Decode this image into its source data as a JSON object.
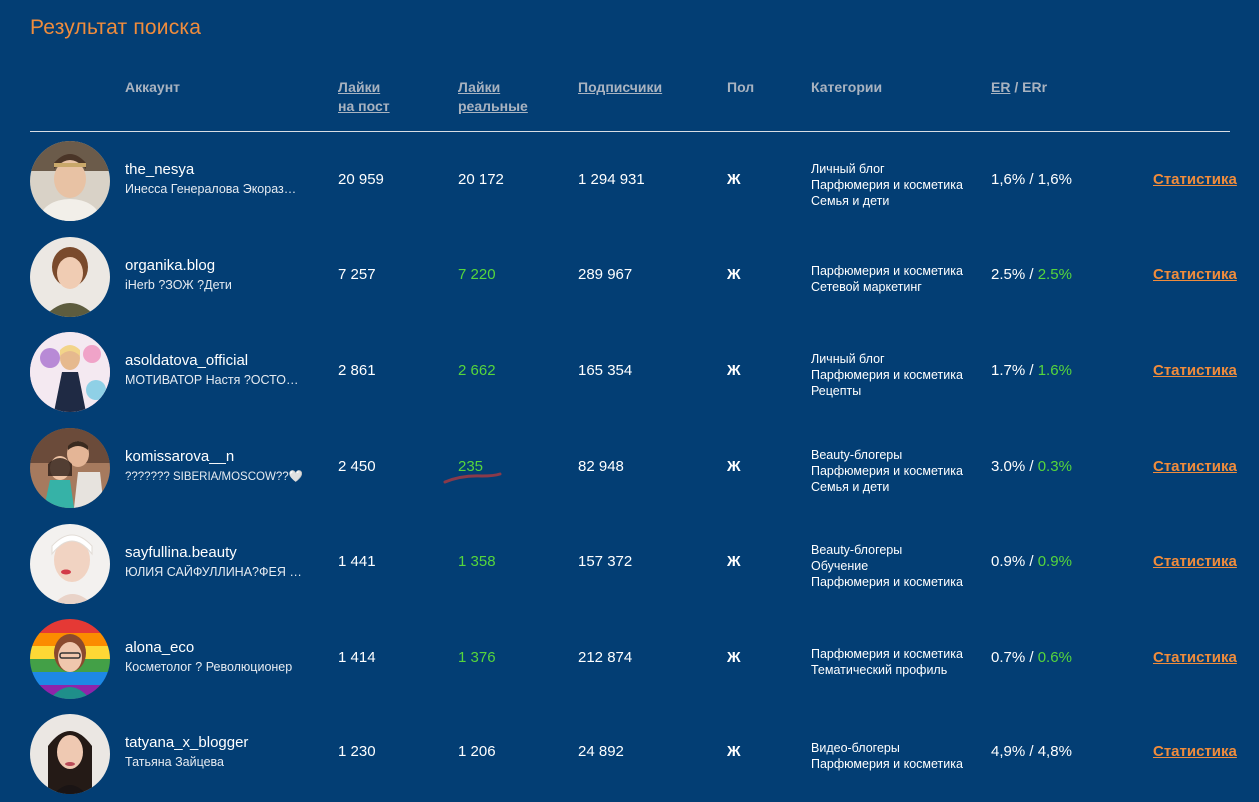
{
  "page": {
    "title": "Результат поиска"
  },
  "columns": {
    "account": "Аккаунт",
    "likes_per_post_1": "Лайки",
    "likes_per_post_2": "на пост",
    "likes_real_1": "Лайки",
    "likes_real_2": "реальные",
    "subscribers": "Подписчики",
    "gender": "Пол",
    "categories": "Категории",
    "er": "ER",
    "er_sep": " / ",
    "err": "ERr"
  },
  "colors": {
    "background": "#033e74",
    "accent": "#f08c3c",
    "green": "#56d63c"
  },
  "rows": [
    {
      "username": "the_nesya",
      "description": "Инесса Генералова Экоразно…",
      "likes_per_post": "20 959",
      "likes_real": "20 172",
      "likes_real_green": false,
      "subscribers": "1 294 931",
      "gender": "Ж",
      "categories": [
        "Личный блог",
        "Парфюмерия и косметика",
        "Семья и дети"
      ],
      "er": "1,6%",
      "err": "1,6%",
      "err_green": false,
      "stat_label": "Статистика"
    },
    {
      "username": "organika.blog",
      "description": "iHerb ?ЗОЖ ?Дети",
      "likes_per_post": "7 257",
      "likes_real": "7 220",
      "likes_real_green": true,
      "subscribers": "289 967",
      "gender": "Ж",
      "categories": [
        "Парфюмерия и косметика",
        "Сетевой маркетинг"
      ],
      "er": "2.5%",
      "err": "2.5%",
      "err_green": true,
      "stat_label": "Статистика"
    },
    {
      "username": "asoldatova_official",
      "description": "МОТИВАТОР Настя ?ОСТОРО…",
      "likes_per_post": "2 861",
      "likes_real": "2 662",
      "likes_real_green": true,
      "subscribers": "165 354",
      "gender": "Ж",
      "categories": [
        "Личный блог",
        "Парфюмерия и косметика",
        "Рецепты"
      ],
      "er": "1.7%",
      "err": "1.6%",
      "err_green": true,
      "stat_label": "Статистика"
    },
    {
      "username": "komissarova__n",
      "description": "??????? SIBERIA/MOSCOW??🤍",
      "likes_per_post": "2 450",
      "likes_real": "235",
      "likes_real_green": true,
      "subscribers": "82 948",
      "gender": "Ж",
      "categories": [
        "Beauty-блогеры",
        "Парфюмерия и косметика",
        "Семья и дети"
      ],
      "er": "3.0%",
      "err": "0.3%",
      "err_green": true,
      "stat_label": "Статистика"
    },
    {
      "username": "sayfullina.beauty",
      "description": "ЮЛИЯ САЙФУЛЛИНА?ФЕЯ КР…",
      "likes_per_post": "1 441",
      "likes_real": "1 358",
      "likes_real_green": true,
      "subscribers": "157 372",
      "gender": "Ж",
      "categories": [
        "Beauty-блогеры",
        "Обучение",
        "Парфюмерия и косметика"
      ],
      "er": "0.9%",
      "err": "0.9%",
      "err_green": true,
      "stat_label": "Статистика"
    },
    {
      "username": "alona_eco",
      "description": "Косметолог ? Революционер",
      "likes_per_post": "1 414",
      "likes_real": "1 376",
      "likes_real_green": true,
      "subscribers": "212 874",
      "gender": "Ж",
      "categories": [
        "Парфюмерия и косметика",
        "Тематический профиль"
      ],
      "er": "0.7%",
      "err": "0.6%",
      "err_green": true,
      "stat_label": "Статистика"
    },
    {
      "username": "tatyana_x_blogger",
      "description": "Татьяна Зайцева",
      "likes_per_post": "1 230",
      "likes_real": "1 206",
      "likes_real_green": false,
      "subscribers": "24 892",
      "gender": "Ж",
      "categories": [
        "Видео-блогеры",
        "Парфюмерия и косметика"
      ],
      "er": "4,9%",
      "err": "4,8%",
      "err_green": false,
      "stat_label": "Статистика"
    }
  ]
}
